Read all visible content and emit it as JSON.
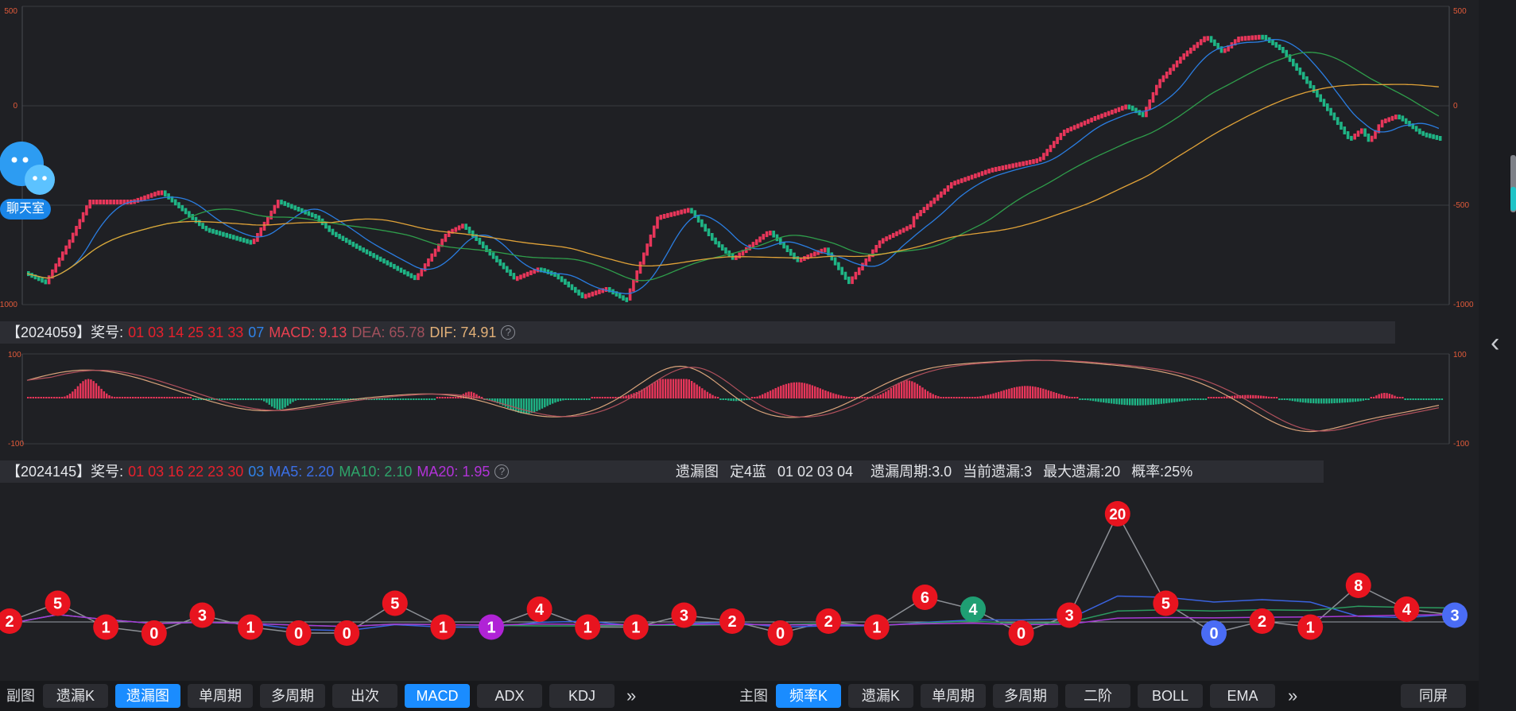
{
  "main_chart": {
    "y_ticks": [
      "500",
      "0",
      "-500",
      "-1000"
    ],
    "ylim": [
      -1000,
      500
    ],
    "colors": {
      "up": "#e8365a",
      "down": "#1fb485",
      "ma5": "#2a7de1",
      "ma10": "#2f9e4b",
      "ma20": "#e0a238"
    }
  },
  "macd_panel": {
    "period_label": "【2024059】",
    "prize_label": "奖号:",
    "red_numbers": "01 03 14 25 31 33",
    "blue_number": "07",
    "macd_label": "MACD: 9.13",
    "dea_label": "DEA: 65.78",
    "dif_label": "DIF: 74.91",
    "y_ticks": [
      "100",
      "-100"
    ],
    "help_icon": "question-circle-icon"
  },
  "miss_panel": {
    "period_label": "【2024145】",
    "prize_label": "奖号:",
    "red_numbers": "01 03 16 22 23 30",
    "blue_number": "03",
    "ma5_label": "MA5: 2.20",
    "ma10_label": "MA10: 2.10",
    "ma20_label": "MA20: 1.95",
    "chart_name": "遗漏图",
    "rule": "定4蓝",
    "numbers": "01 02 03 04",
    "cycle": "遗漏周期:3.0",
    "current": "当前遗漏:3",
    "max": "最大遗漏:20",
    "prob": "概率:25%"
  },
  "chart_data": [
    {
      "type": "line",
      "series": [
        {
          "name": "MA5",
          "color": "#2a7de1"
        },
        {
          "name": "MA10",
          "color": "#2f9e4b"
        },
        {
          "name": "MA20",
          "color": "#e0a238"
        }
      ],
      "y_ticks": [
        500,
        0,
        -500,
        -1000
      ],
      "ylim": [
        -1000,
        500
      ]
    },
    {
      "type": "bar",
      "ylim": [
        -100,
        100
      ],
      "y_ticks": [
        100,
        -100
      ]
    },
    {
      "type": "line",
      "values": [
        2,
        5,
        1,
        0,
        3,
        1,
        0,
        0,
        5,
        1,
        1,
        4,
        1,
        1,
        3,
        2,
        0,
        2,
        1,
        6,
        4,
        0,
        3,
        20,
        5,
        0,
        2,
        1,
        8,
        4,
        3
      ],
      "labels": [
        "2",
        "5",
        "1",
        "0",
        "3",
        "1",
        "0",
        "0",
        "5",
        "1",
        "1",
        "4",
        "1",
        "1",
        "3",
        "2",
        "0",
        "2",
        "1",
        "6",
        "4",
        "0",
        "3",
        "20",
        "5",
        "0",
        "2",
        "1",
        "8",
        "4",
        "3"
      ],
      "node_colors": [
        "red",
        "red",
        "red",
        "red",
        "red",
        "red",
        "red",
        "red",
        "red",
        "red",
        "purple",
        "red",
        "red",
        "red",
        "red",
        "red",
        "red",
        "red",
        "red",
        "red",
        "green",
        "red",
        "red",
        "red",
        "red",
        "blue",
        "red",
        "red",
        "red",
        "red",
        "blue"
      ],
      "colors": {
        "red": "#e8141f",
        "purple": "#b023d6",
        "green": "#1f9f73",
        "blue": "#4a6cf5"
      }
    }
  ],
  "chat": {
    "label": "聊天室",
    "icon": "chat-bubbles-icon"
  },
  "bottom": {
    "sub_label": "副图",
    "sub_buttons": [
      "遗漏K",
      "遗漏图",
      "单周期",
      "多周期",
      "出次",
      "MACD",
      "ADX",
      "KDJ"
    ],
    "more": "»",
    "main_label": "主图",
    "main_buttons": [
      "频率K",
      "遗漏K",
      "单周期",
      "多周期",
      "二阶",
      "BOLL",
      "EMA"
    ],
    "more2": "»",
    "same_screen": "同屏"
  },
  "side": {
    "collapse_icon": "chevron-left-icon"
  }
}
